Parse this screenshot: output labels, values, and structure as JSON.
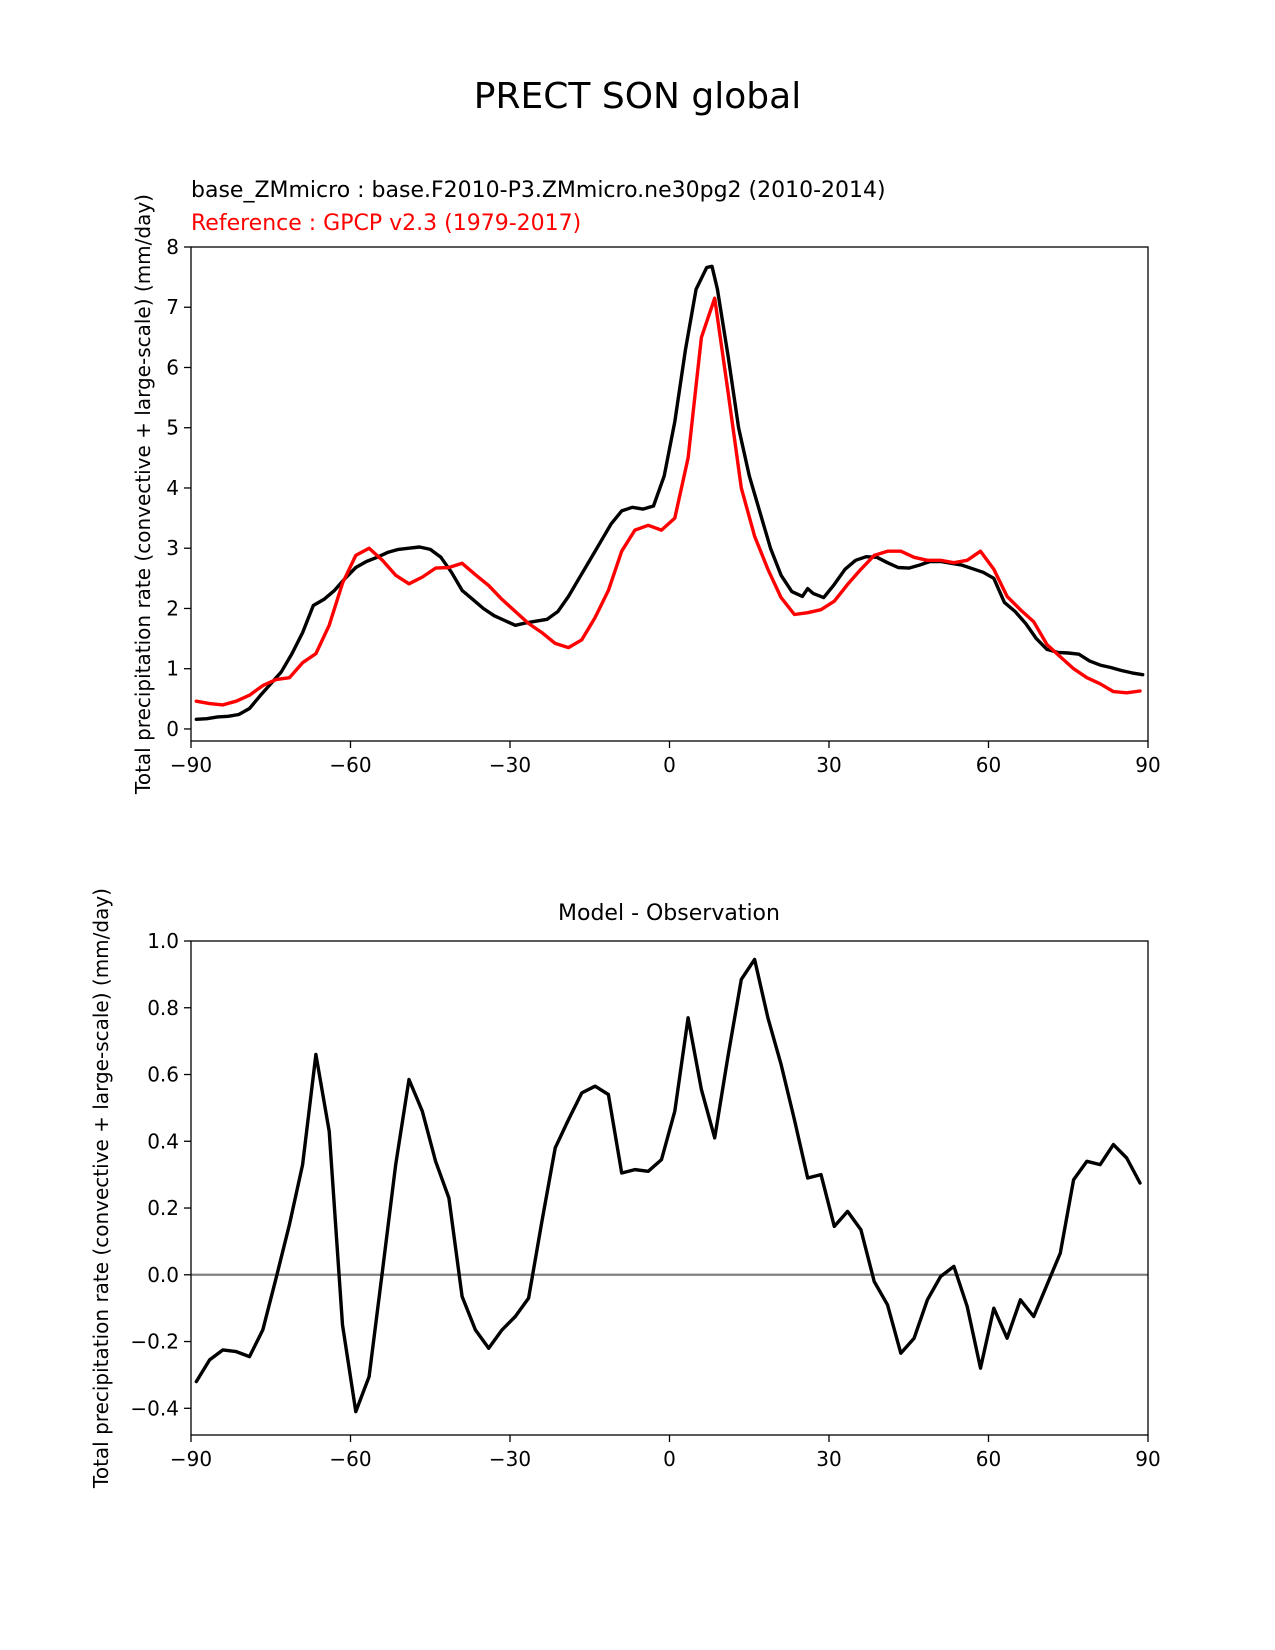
{
  "suptitle": "PRECT SON global",
  "chart_data": [
    {
      "type": "line",
      "title_lines": [
        {
          "text": "base_ZMmicro : base.F2010-P3.ZMmicro.ne30pg2 (2010-2014)",
          "color": "#000000"
        },
        {
          "text": "Reference : GPCP v2.3 (1979-2017)",
          "color": "#ff0000"
        }
      ],
      "xlabel": "",
      "ylabel": "Total precipitation rate (convective + large-scale) (mm/day)",
      "xlim": [
        -90,
        90
      ],
      "ylim": [
        -0.2,
        8.0
      ],
      "xticks": [
        -90,
        -60,
        -30,
        0,
        30,
        60,
        90
      ],
      "yticks": [
        0,
        1,
        2,
        3,
        4,
        5,
        6,
        7,
        8
      ],
      "grid": false,
      "series": [
        {
          "name": "base_ZMmicro",
          "color": "#000000",
          "x": [
            -89,
            -87,
            -85,
            -83,
            -81,
            -79,
            -77,
            -75,
            -73,
            -71,
            -69,
            -67,
            -65,
            -63,
            -61,
            -59,
            -57,
            -55,
            -53,
            -51,
            -49,
            -47,
            -45,
            -43,
            -41,
            -39,
            -37,
            -35,
            -33,
            -31,
            -29,
            -27,
            -25,
            -23,
            -21,
            -19,
            -17,
            -15,
            -13,
            -11,
            -9,
            -7,
            -5,
            -3,
            -1,
            1,
            3,
            5,
            7,
            8,
            9,
            11,
            13,
            15,
            17,
            19,
            21,
            23,
            25,
            26,
            27,
            29,
            31,
            33,
            35,
            37,
            39,
            41,
            43,
            45,
            47,
            49,
            51,
            53,
            55,
            57,
            59,
            61,
            63,
            65,
            67,
            69,
            71,
            73,
            75,
            77,
            79,
            81,
            83,
            85,
            87,
            89
          ],
          "y": [
            0.16,
            0.17,
            0.2,
            0.21,
            0.24,
            0.34,
            0.55,
            0.75,
            0.95,
            1.25,
            1.6,
            2.05,
            2.15,
            2.3,
            2.5,
            2.68,
            2.78,
            2.85,
            2.93,
            2.98,
            3.0,
            3.02,
            2.98,
            2.85,
            2.6,
            2.3,
            2.15,
            2.0,
            1.88,
            1.8,
            1.72,
            1.76,
            1.79,
            1.82,
            1.95,
            2.2,
            2.5,
            2.8,
            3.1,
            3.4,
            3.62,
            3.68,
            3.65,
            3.7,
            4.2,
            5.1,
            6.3,
            7.3,
            7.66,
            7.68,
            7.3,
            6.2,
            5.0,
            4.2,
            3.6,
            3.0,
            2.55,
            2.28,
            2.2,
            2.33,
            2.25,
            2.18,
            2.4,
            2.65,
            2.8,
            2.86,
            2.85,
            2.76,
            2.68,
            2.67,
            2.72,
            2.78,
            2.78,
            2.75,
            2.72,
            2.66,
            2.6,
            2.5,
            2.1,
            1.95,
            1.75,
            1.5,
            1.32,
            1.27,
            1.26,
            1.24,
            1.13,
            1.06,
            1.02,
            0.97,
            0.93,
            0.9
          ]
        },
        {
          "name": "GPCP v2.3",
          "color": "#ff0000",
          "x": [
            -89,
            -86.5,
            -84,
            -81.5,
            -79,
            -76.5,
            -74,
            -71.5,
            -69,
            -66.5,
            -64,
            -61.5,
            -59,
            -56.5,
            -54,
            -51.5,
            -49,
            -46.5,
            -44,
            -41.5,
            -39,
            -36.5,
            -34,
            -31.5,
            -29,
            -26.5,
            -24,
            -21.5,
            -19,
            -16.5,
            -14,
            -11.5,
            -9,
            -6.5,
            -4,
            -1.5,
            1,
            3.5,
            6,
            8.5,
            11,
            13.5,
            16,
            18.5,
            21,
            23.5,
            26,
            28.5,
            31,
            33.5,
            36,
            38.5,
            41,
            43.5,
            46,
            48.5,
            51,
            53.5,
            56,
            58.5,
            61,
            63.5,
            66,
            68.5,
            71,
            73.5,
            76,
            78.5,
            81,
            83.5,
            86,
            88.5
          ],
          "y": [
            0.46,
            0.42,
            0.4,
            0.46,
            0.56,
            0.72,
            0.82,
            0.85,
            1.1,
            1.25,
            1.72,
            2.42,
            2.88,
            3.0,
            2.8,
            2.55,
            2.41,
            2.52,
            2.67,
            2.68,
            2.75,
            2.56,
            2.38,
            2.15,
            1.95,
            1.75,
            1.6,
            1.42,
            1.35,
            1.48,
            1.85,
            2.3,
            2.95,
            3.3,
            3.38,
            3.3,
            3.5,
            4.5,
            6.5,
            7.15,
            5.6,
            4.0,
            3.2,
            2.65,
            2.18,
            1.9,
            1.93,
            1.98,
            2.12,
            2.4,
            2.65,
            2.88,
            2.95,
            2.95,
            2.85,
            2.8,
            2.8,
            2.76,
            2.8,
            2.95,
            2.65,
            2.2,
            1.98,
            1.78,
            1.4,
            1.2,
            1.0,
            0.85,
            0.75,
            0.62,
            0.6,
            0.63
          ]
        }
      ]
    },
    {
      "type": "line",
      "title": "Model - Observation",
      "xlabel": "",
      "ylabel": "Total precipitation rate (convective + large-scale) (mm/day)",
      "xlim": [
        -90,
        90
      ],
      "ylim": [
        -0.48,
        1.0
      ],
      "xticks": [
        -90,
        -60,
        -30,
        0,
        30,
        60,
        90
      ],
      "yticks": [
        -0.4,
        -0.2,
        0.0,
        0.2,
        0.4,
        0.6,
        0.8,
        1.0
      ],
      "ytick_labels": [
        "−0.4",
        "−0.2",
        "0.0",
        "0.2",
        "0.4",
        "0.6",
        "0.8",
        "1.0"
      ],
      "grid": false,
      "zero_line_color": "#808080",
      "series": [
        {
          "color": "#000000",
          "x": [
            -89,
            -86.5,
            -84,
            -81.5,
            -79,
            -76.5,
            -74,
            -71.5,
            -69,
            -66.5,
            -64,
            -61.5,
            -59,
            -56.5,
            -54,
            -51.5,
            -49,
            -46.5,
            -44,
            -41.5,
            -39,
            -36.5,
            -34,
            -31.5,
            -29,
            -26.5,
            -24,
            -21.5,
            -19,
            -16.5,
            -14,
            -11.5,
            -9,
            -6.5,
            -4,
            -1.5,
            1,
            3.5,
            6,
            8.5,
            11,
            13.5,
            16,
            18.5,
            21,
            23.5,
            26,
            28.5,
            31,
            33.5,
            36,
            38.5,
            41,
            43.5,
            46,
            48.5,
            51,
            53.5,
            56,
            58.5,
            61,
            63.5,
            66,
            68.5,
            71,
            73.5,
            76,
            78.5,
            81,
            83.5,
            86,
            88.5
          ],
          "y": [
            -0.32,
            -0.255,
            -0.225,
            -0.23,
            -0.245,
            -0.165,
            -0.01,
            0.15,
            0.33,
            0.66,
            0.43,
            -0.15,
            -0.41,
            -0.305,
            0.01,
            0.33,
            0.585,
            0.49,
            0.34,
            0.23,
            -0.065,
            -0.165,
            -0.22,
            -0.165,
            -0.125,
            -0.07,
            0.16,
            0.38,
            0.465,
            0.545,
            0.565,
            0.54,
            0.305,
            0.315,
            0.31,
            0.345,
            0.49,
            0.77,
            0.555,
            0.41,
            0.655,
            0.885,
            0.945,
            0.77,
            0.63,
            0.465,
            0.29,
            0.3,
            0.145,
            0.19,
            0.135,
            -0.02,
            -0.09,
            -0.235,
            -0.19,
            -0.075,
            -0.005,
            0.025,
            -0.095,
            -0.28,
            -0.1,
            -0.19,
            -0.075,
            -0.125,
            -0.03,
            0.065,
            0.285,
            0.34,
            0.33,
            0.39,
            0.35,
            0.275
          ]
        }
      ]
    }
  ]
}
